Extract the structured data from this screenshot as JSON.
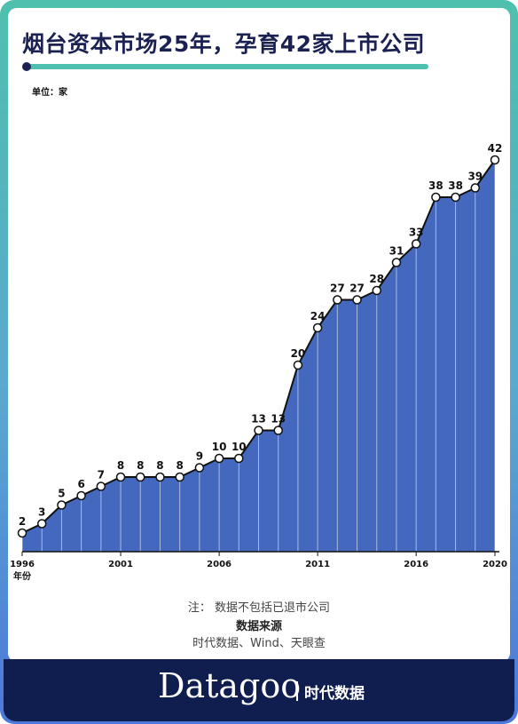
{
  "header": {
    "title": "烟台资本市场25年，孕育42家上市公司",
    "unit": "单位：家"
  },
  "chart_data": {
    "type": "area",
    "x": [
      1996,
      1997,
      1998,
      1999,
      2000,
      2001,
      2002,
      2003,
      2004,
      2005,
      2006,
      2007,
      2008,
      2009,
      2010,
      2011,
      2012,
      2013,
      2014,
      2015,
      2016,
      2017,
      2018,
      2019,
      2020
    ],
    "values": [
      2,
      3,
      5,
      6,
      7,
      8,
      8,
      8,
      8,
      9,
      10,
      10,
      13,
      13,
      20,
      24,
      27,
      27,
      28,
      31,
      33,
      38,
      38,
      39,
      42
    ],
    "xticks": [
      1996,
      2001,
      2006,
      2011,
      2016,
      2020
    ],
    "xlabel": "年份",
    "ylabel": "",
    "ylim": [
      0,
      42
    ],
    "grid": false,
    "colors": {
      "area": "#4468bd",
      "line": "#111111",
      "marker_fill": "#ffffff"
    }
  },
  "notes": {
    "note": "注：  数据不包括已退市公司",
    "source_title": "数据来源",
    "source_text": "时代数据、Wind、天眼查"
  },
  "footer": {
    "brand": "Datagoo",
    "brand_cn": "时代数据",
    "colors": {
      "background": "#101d4f",
      "frame_top": "#4fc0ae",
      "frame_bottom": "#4d77d8"
    }
  }
}
